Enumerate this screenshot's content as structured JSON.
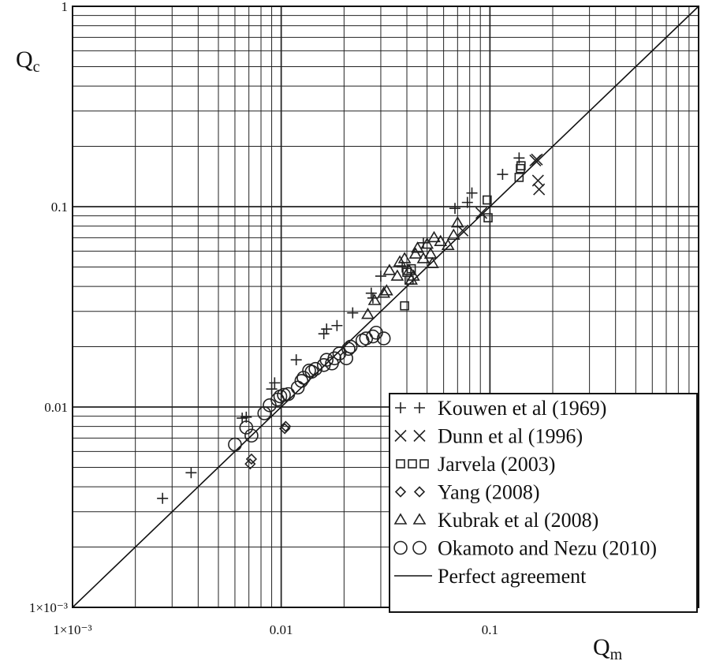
{
  "chart_data": {
    "type": "scatter",
    "title": "",
    "xlabel": "Q",
    "xlabel_sub": "m",
    "ylabel": "Q",
    "ylabel_sub": "c",
    "xscale": "log",
    "yscale": "log",
    "xlim": [
      0.001,
      1
    ],
    "ylim": [
      0.001,
      1
    ],
    "grid": true,
    "legend_position": "bottom-right",
    "x_tick_labels": [
      {
        "value": 0.001,
        "text": "1×10⁻³"
      },
      {
        "value": 0.01,
        "text": "0.01"
      },
      {
        "value": 0.1,
        "text": "0.1"
      }
    ],
    "y_tick_labels": [
      {
        "value": 0.001,
        "text": "1×10⁻³"
      },
      {
        "value": 0.01,
        "text": "0.01"
      },
      {
        "value": 0.1,
        "text": "0.1"
      },
      {
        "value": 1,
        "text": "1"
      }
    ],
    "series": [
      {
        "name": "Kouwen et al (1969)",
        "marker": "plus",
        "points": [
          [
            0.0027,
            0.0035
          ],
          [
            0.0037,
            0.0047
          ],
          [
            0.0065,
            0.0088
          ],
          [
            0.0068,
            0.0089
          ],
          [
            0.009,
            0.0123
          ],
          [
            0.0093,
            0.0132
          ],
          [
            0.0118,
            0.0172
          ],
          [
            0.016,
            0.0232
          ],
          [
            0.0165,
            0.0245
          ],
          [
            0.0185,
            0.0255
          ],
          [
            0.022,
            0.0295
          ],
          [
            0.027,
            0.037
          ],
          [
            0.0275,
            0.035
          ],
          [
            0.03,
            0.045
          ],
          [
            0.038,
            0.05
          ],
          [
            0.048,
            0.066
          ],
          [
            0.068,
            0.098
          ],
          [
            0.078,
            0.105
          ],
          [
            0.082,
            0.117
          ],
          [
            0.115,
            0.145
          ],
          [
            0.138,
            0.175
          ]
        ]
      },
      {
        "name": "Dunn et al (1996)",
        "marker": "x",
        "points": [
          [
            0.074,
            0.076
          ],
          [
            0.091,
            0.093
          ],
          [
            0.165,
            0.17
          ],
          [
            0.168,
            0.172
          ],
          [
            0.17,
            0.135
          ],
          [
            0.172,
            0.122
          ]
        ]
      },
      {
        "name": "Jarvela (2003)",
        "marker": "square",
        "points": [
          [
            0.039,
            0.032
          ],
          [
            0.04,
            0.047
          ],
          [
            0.041,
            0.043
          ],
          [
            0.042,
            0.049
          ],
          [
            0.097,
            0.108
          ],
          [
            0.098,
            0.088
          ],
          [
            0.138,
            0.14
          ],
          [
            0.14,
            0.155
          ],
          [
            0.141,
            0.16
          ]
        ]
      },
      {
        "name": "Yang (2008)",
        "marker": "diamond",
        "points": [
          [
            0.0071,
            0.0052
          ],
          [
            0.0072,
            0.0055
          ],
          [
            0.0104,
            0.0078
          ],
          [
            0.0105,
            0.008
          ]
        ]
      },
      {
        "name": "Kubrak et al (2008)",
        "marker": "triangle",
        "points": [
          [
            0.026,
            0.029
          ],
          [
            0.028,
            0.034
          ],
          [
            0.031,
            0.037
          ],
          [
            0.032,
            0.038
          ],
          [
            0.033,
            0.048
          ],
          [
            0.036,
            0.045
          ],
          [
            0.037,
            0.053
          ],
          [
            0.039,
            0.055
          ],
          [
            0.041,
            0.048
          ],
          [
            0.042,
            0.043
          ],
          [
            0.043,
            0.045
          ],
          [
            0.044,
            0.058
          ],
          [
            0.045,
            0.062
          ],
          [
            0.048,
            0.055
          ],
          [
            0.05,
            0.065
          ],
          [
            0.052,
            0.058
          ],
          [
            0.053,
            0.052
          ],
          [
            0.054,
            0.07
          ],
          [
            0.058,
            0.067
          ],
          [
            0.063,
            0.064
          ],
          [
            0.067,
            0.072
          ],
          [
            0.07,
            0.083
          ]
        ]
      },
      {
        "name": "Okamoto and Nezu (2010)",
        "marker": "circle",
        "points": [
          [
            0.006,
            0.0065
          ],
          [
            0.0068,
            0.0079
          ],
          [
            0.0072,
            0.0072
          ],
          [
            0.0083,
            0.0093
          ],
          [
            0.0088,
            0.0102
          ],
          [
            0.0096,
            0.0109
          ],
          [
            0.0099,
            0.0113
          ],
          [
            0.0103,
            0.0115
          ],
          [
            0.0108,
            0.0116
          ],
          [
            0.012,
            0.0125
          ],
          [
            0.0125,
            0.0135
          ],
          [
            0.0128,
            0.014
          ],
          [
            0.0136,
            0.0152
          ],
          [
            0.014,
            0.015
          ],
          [
            0.0146,
            0.0155
          ],
          [
            0.016,
            0.0162
          ],
          [
            0.0165,
            0.0172
          ],
          [
            0.0175,
            0.0165
          ],
          [
            0.018,
            0.0175
          ],
          [
            0.019,
            0.0185
          ],
          [
            0.0205,
            0.0175
          ],
          [
            0.021,
            0.0195
          ],
          [
            0.0215,
            0.02
          ],
          [
            0.0245,
            0.0215
          ],
          [
            0.0255,
            0.022
          ],
          [
            0.0275,
            0.0225
          ],
          [
            0.0285,
            0.0235
          ],
          [
            0.031,
            0.022
          ]
        ]
      },
      {
        "name": "Perfect agreement",
        "marker": "line",
        "points": [
          [
            0.001,
            0.001
          ],
          [
            1,
            1
          ]
        ]
      }
    ]
  }
}
